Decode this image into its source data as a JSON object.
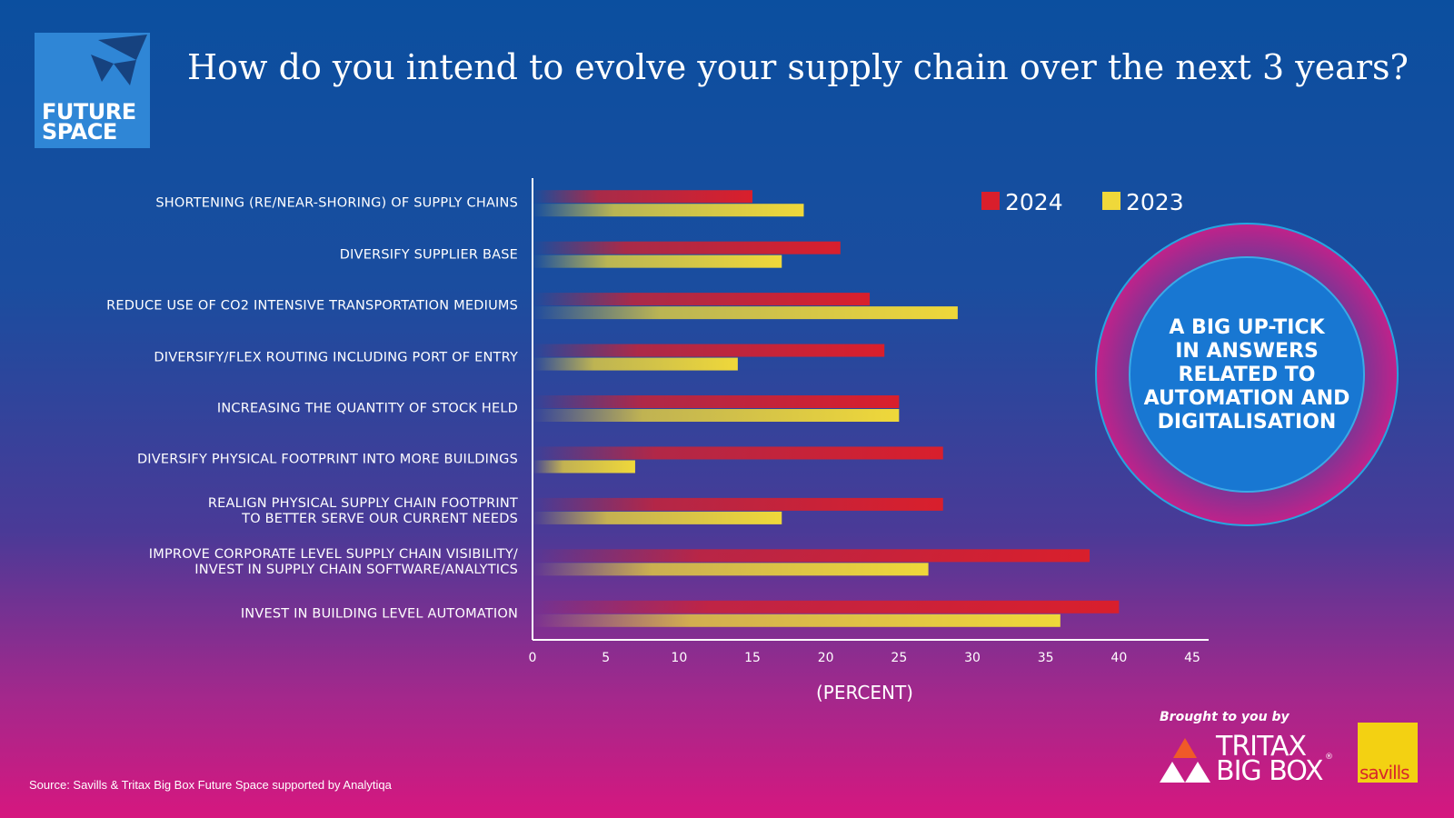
{
  "logo": {
    "lines": [
      "FUTURE",
      "SPACE"
    ]
  },
  "callout": {
    "lines": [
      "A BIG UP-TICK",
      "IN ANSWERS",
      "RELATED TO",
      "AUTOMATION AND",
      "DIGITALISATION"
    ]
  },
  "sponsor": {
    "intro": "Brought to you by",
    "brand": [
      "TRITAX",
      "BIG BOX"
    ],
    "mark": "®",
    "partner": "savills"
  },
  "source": "Source: Savills & Tritax Big Box Future Space supported by Analytiqa",
  "chart_data": {
    "type": "hbar",
    "title": "How do you intend to evolve your supply chain over the next 3 years?",
    "xlabel": "(PERCENT)",
    "categories": [
      "SHORTENING (RE/NEAR-SHORING) OF SUPPLY CHAINS",
      "DIVERSIFY SUPPLIER BASE",
      "REDUCE USE OF CO2 INTENSIVE TRANSPORTATION MEDIUMS",
      "DIVERSIFY/FLEX ROUTING INCLUDING PORT OF ENTRY",
      "INCREASING THE QUANTITY OF STOCK HELD",
      "DIVERSIFY PHYSICAL FOOTPRINT INTO MORE BUILDINGS",
      "REALIGN PHYSICAL SUPPLY CHAIN FOOTPRINT\nTO BETTER SERVE OUR CURRENT NEEDS",
      "IMPROVE CORPORATE LEVEL SUPPLY CHAIN VISIBILITY/\nINVEST IN SUPPLY CHAIN SOFTWARE/ANALYTICS",
      "INVEST IN BUILDING LEVEL AUTOMATION"
    ],
    "series": [
      {
        "name": "2024",
        "color": "#d91f2c",
        "values": [
          15,
          21,
          23,
          24,
          25,
          28,
          28,
          38,
          40
        ]
      },
      {
        "name": "2023",
        "color": "#efd83a",
        "values": [
          18.5,
          17,
          29,
          14,
          25,
          7,
          17,
          27,
          36
        ]
      }
    ],
    "xlim": [
      0,
      45
    ],
    "xticks": [
      0,
      5,
      10,
      15,
      20,
      25,
      30,
      35,
      40,
      45
    ],
    "grid": false,
    "legend": "top-right"
  }
}
